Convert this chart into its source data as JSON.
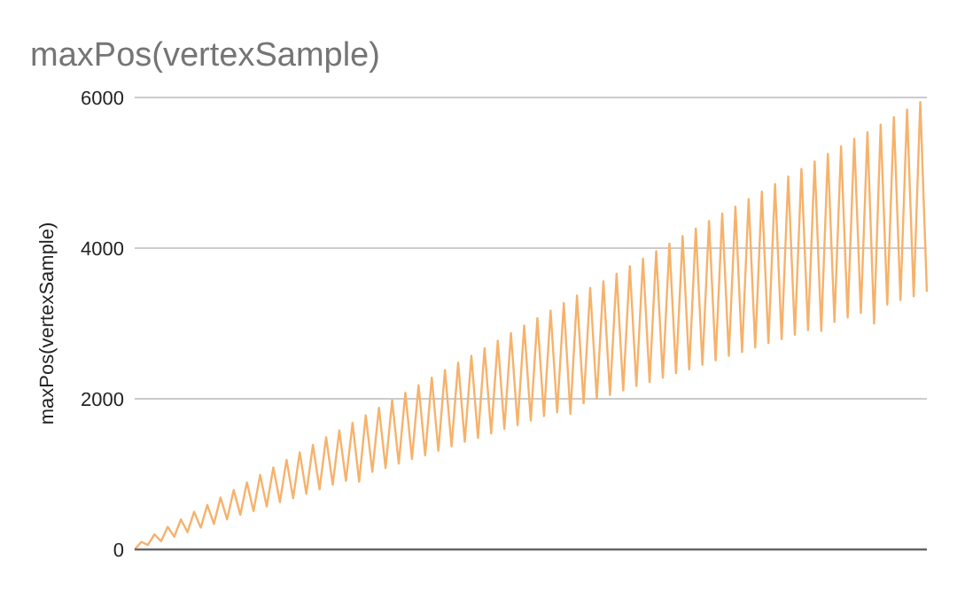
{
  "chart_data": {
    "type": "line",
    "title": "maxPos(vertexSample)",
    "ylabel": "maxPos(vertexSample)",
    "categories": [
      null,
      null,
      null,
      null,
      null,
      null,
      null,
      null,
      null,
      null,
      null,
      null,
      null,
      null,
      null,
      null,
      null,
      null,
      null,
      null,
      null,
      null,
      null,
      null,
      null,
      null,
      null,
      null,
      null,
      null,
      null,
      null,
      null,
      null,
      null,
      null,
      null,
      null,
      null,
      null,
      null,
      null,
      null,
      null,
      null,
      null,
      null,
      null,
      null,
      null,
      null,
      null,
      null,
      null,
      null,
      null,
      null,
      null,
      null,
      null,
      null,
      null,
      null,
      null,
      null,
      null,
      null,
      null,
      null,
      null,
      null,
      null,
      null,
      null,
      null,
      null,
      null,
      null,
      null,
      null,
      null,
      null,
      null,
      null,
      null,
      null,
      null,
      null,
      null,
      null,
      null,
      null,
      null,
      null,
      null,
      null,
      null,
      null,
      null,
      null,
      null,
      null,
      null,
      null,
      null,
      null,
      null,
      null,
      null,
      null,
      null,
      null,
      null,
      null,
      null,
      null,
      null,
      null,
      null,
      null,
      null
    ],
    "series": [
      {
        "color": "#f6b26b",
        "values": [
          0,
          100,
          60,
          200,
          110,
          300,
          170,
          400,
          230,
          500,
          290,
          590,
          340,
          690,
          400,
          790,
          460,
          890,
          510,
          990,
          570,
          1090,
          630,
          1190,
          680,
          1290,
          740,
          1390,
          800,
          1490,
          860,
          1580,
          910,
          1680,
          900,
          1780,
          1030,
          1880,
          1080,
          1980,
          1140,
          2080,
          1200,
          2180,
          1250,
          2280,
          1310,
          2380,
          1370,
          2480,
          1430,
          2570,
          1480,
          2670,
          1540,
          2770,
          1600,
          2870,
          1650,
          2970,
          1710,
          3070,
          1770,
          3170,
          1820,
          3270,
          1800,
          3370,
          1940,
          3470,
          2000,
          3560,
          2050,
          3660,
          2110,
          3760,
          2170,
          3860,
          2220,
          3960,
          2280,
          4060,
          2340,
          4160,
          2390,
          4260,
          2450,
          4360,
          2510,
          4460,
          2570,
          4550,
          2620,
          4650,
          2680,
          4750,
          2740,
          4850,
          2790,
          4950,
          2850,
          5050,
          2910,
          5150,
          2900,
          5250,
          3020,
          5350,
          3080,
          5450,
          3140,
          5540,
          3000,
          5640,
          3250,
          5740,
          3310,
          5840,
          3360,
          5940,
          3420
        ]
      }
    ],
    "ylim": [
      0,
      6000
    ],
    "yticks": [
      0,
      2000,
      4000,
      6000
    ],
    "grid": true,
    "marker": "none",
    "line_style": "solid"
  }
}
